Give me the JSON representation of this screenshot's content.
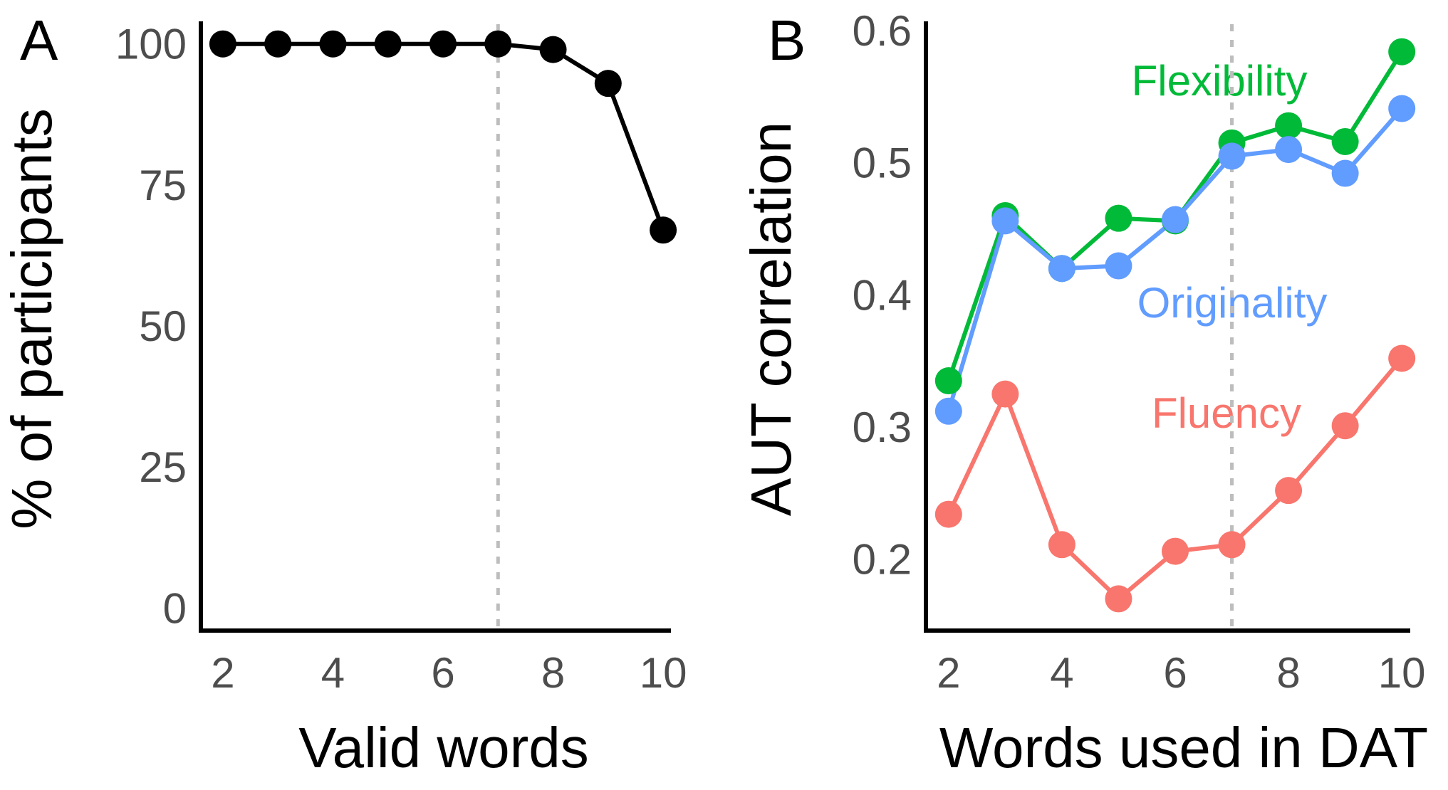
{
  "chart_data": [
    {
      "panel": "A",
      "type": "line",
      "xlabel": "Valid words",
      "ylabel": "% of participants",
      "xlim": [
        1.6,
        10.4
      ],
      "ylim": [
        -4,
        104
      ],
      "xticks": [
        2,
        4,
        6,
        8,
        10
      ],
      "yticks": [
        0,
        25,
        50,
        75,
        100
      ],
      "vline": 7,
      "grid": false,
      "series": [
        {
          "color": "#000000",
          "x": [
            2,
            3,
            4,
            5,
            6,
            7,
            8,
            9,
            10
          ],
          "values": [
            100,
            100,
            100,
            100,
            100,
            100,
            99,
            93,
            67
          ]
        }
      ]
    },
    {
      "panel": "B",
      "type": "line",
      "xlabel": "Words used in DAT",
      "ylabel": "AUT correlation",
      "xlim": [
        1.6,
        10.4
      ],
      "ylim": [
        0.146,
        0.607
      ],
      "xticks": [
        2,
        4,
        6,
        8,
        10
      ],
      "yticks": [
        0.2,
        0.3,
        0.4,
        0.5,
        0.6
      ],
      "ytick_labels": [
        "0.2",
        "0.3",
        "0.4",
        "0.5",
        "0.6"
      ],
      "vline": 7,
      "grid": false,
      "series": [
        {
          "name": "Flexibility",
          "color": "#00ba38",
          "x": [
            2,
            3,
            4,
            5,
            6,
            7,
            8,
            9,
            10
          ],
          "values": [
            0.335,
            0.46,
            0.42,
            0.458,
            0.456,
            0.515,
            0.528,
            0.516,
            0.584
          ]
        },
        {
          "name": "Originality",
          "color": "#619cff",
          "x": [
            2,
            3,
            4,
            5,
            6,
            7,
            8,
            9,
            10
          ],
          "values": [
            0.312,
            0.456,
            0.42,
            0.422,
            0.457,
            0.505,
            0.51,
            0.492,
            0.541
          ]
        },
        {
          "name": "Fluency",
          "color": "#f8766d",
          "x": [
            2,
            3,
            4,
            5,
            6,
            7,
            8,
            9,
            10
          ],
          "values": [
            0.234,
            0.325,
            0.211,
            0.17,
            0.206,
            0.211,
            0.252,
            0.301,
            0.352
          ]
        }
      ]
    }
  ]
}
